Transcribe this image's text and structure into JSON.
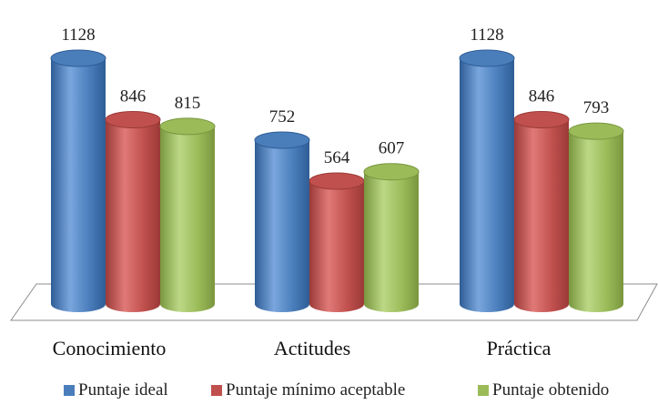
{
  "chart_data": {
    "type": "bar",
    "categories": [
      "Conocimiento",
      "Actitudes",
      "Práctica"
    ],
    "series": [
      {
        "name": "Puntaje ideal",
        "values": [
          1128,
          752,
          1128
        ],
        "color": "#4a7ebb",
        "dark": "#2f5d96",
        "light": "#7aa6dd"
      },
      {
        "name": "Puntaje mínimo aceptable",
        "values": [
          846,
          564,
          846
        ],
        "color": "#c0504d",
        "dark": "#9a3a38",
        "light": "#e07a77"
      },
      {
        "name": "Puntaje obtenido",
        "values": [
          815,
          607,
          793
        ],
        "color": "#9bbb59",
        "dark": "#79963e",
        "light": "#bcd886"
      }
    ],
    "legend_position": "bottom",
    "grid": false
  }
}
